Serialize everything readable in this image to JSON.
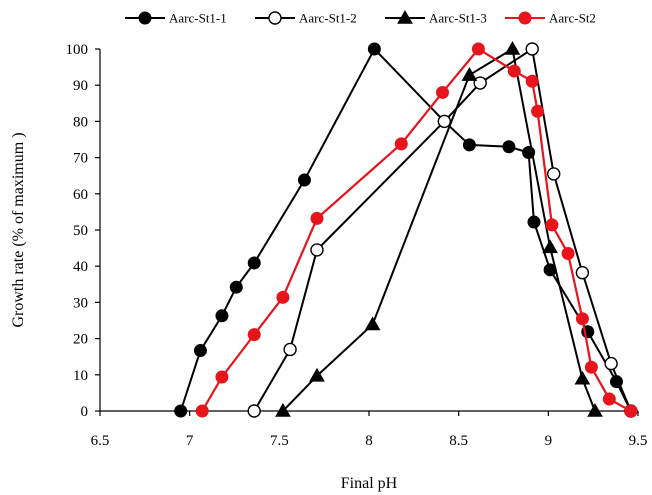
{
  "chart_data": {
    "type": "line",
    "xlabel": "Final pH",
    "ylabel": "Growth rate (% of maximum   )",
    "xlim": [
      6.5,
      9.5
    ],
    "ylim": [
      0,
      100
    ],
    "x_ticks": [
      "6.5",
      "7",
      "7.5",
      "8",
      "8.5",
      "9",
      "9.5"
    ],
    "y_ticks": [
      "0",
      "10",
      "20",
      "30",
      "40",
      "50",
      "60",
      "70",
      "80",
      "90",
      "100"
    ],
    "grid": false,
    "legend_position": "top",
    "series": [
      {
        "name": "Aarc-St1-1",
        "color": "#000000",
        "marker": "filled-circle",
        "points": [
          [
            6.95,
            0
          ],
          [
            7.06,
            16.7
          ],
          [
            7.18,
            26.3
          ],
          [
            7.26,
            34.2
          ],
          [
            7.36,
            40.9
          ],
          [
            7.64,
            63.8
          ],
          [
            8.03,
            100
          ],
          [
            8.42,
            80.0
          ],
          [
            8.56,
            73.5
          ],
          [
            8.78,
            73.0
          ],
          [
            8.89,
            71.4
          ],
          [
            8.92,
            52.2
          ],
          [
            9.01,
            39.0
          ],
          [
            9.22,
            21.9
          ],
          [
            9.38,
            8.1
          ],
          [
            9.46,
            0
          ]
        ]
      },
      {
        "name": "Aarc-St1-2",
        "color": "#000000",
        "marker": "open-circle",
        "points": [
          [
            7.36,
            0
          ],
          [
            7.56,
            17.0
          ],
          [
            7.71,
            44.5
          ],
          [
            8.42,
            80.0
          ],
          [
            8.62,
            90.6
          ],
          [
            8.91,
            100
          ],
          [
            9.03,
            65.5
          ],
          [
            9.19,
            38.2
          ],
          [
            9.35,
            13.1
          ],
          [
            9.46,
            0
          ]
        ]
      },
      {
        "name": "Aarc-St1-3",
        "color": "#000000",
        "marker": "filled-triangle",
        "points": [
          [
            7.52,
            0
          ],
          [
            7.71,
            9.7
          ],
          [
            8.02,
            23.9
          ],
          [
            8.56,
            92.8
          ],
          [
            8.8,
            100
          ],
          [
            9.01,
            45.2
          ],
          [
            9.19,
            8.9
          ],
          [
            9.26,
            0
          ]
        ]
      },
      {
        "name": "Aarc-St2",
        "color": "#e8141c",
        "marker": "filled-circle",
        "points": [
          [
            7.07,
            0
          ],
          [
            7.18,
            9.4
          ],
          [
            7.36,
            21.1
          ],
          [
            7.52,
            31.4
          ],
          [
            7.71,
            53.2
          ],
          [
            8.18,
            73.8
          ],
          [
            8.41,
            88.0
          ],
          [
            8.61,
            100
          ],
          [
            8.81,
            93.9
          ],
          [
            8.91,
            91.1
          ],
          [
            8.94,
            82.8
          ],
          [
            9.02,
            51.4
          ],
          [
            9.11,
            43.5
          ],
          [
            9.19,
            25.5
          ],
          [
            9.24,
            12.1
          ],
          [
            9.34,
            3.3
          ],
          [
            9.46,
            0
          ]
        ]
      }
    ]
  }
}
